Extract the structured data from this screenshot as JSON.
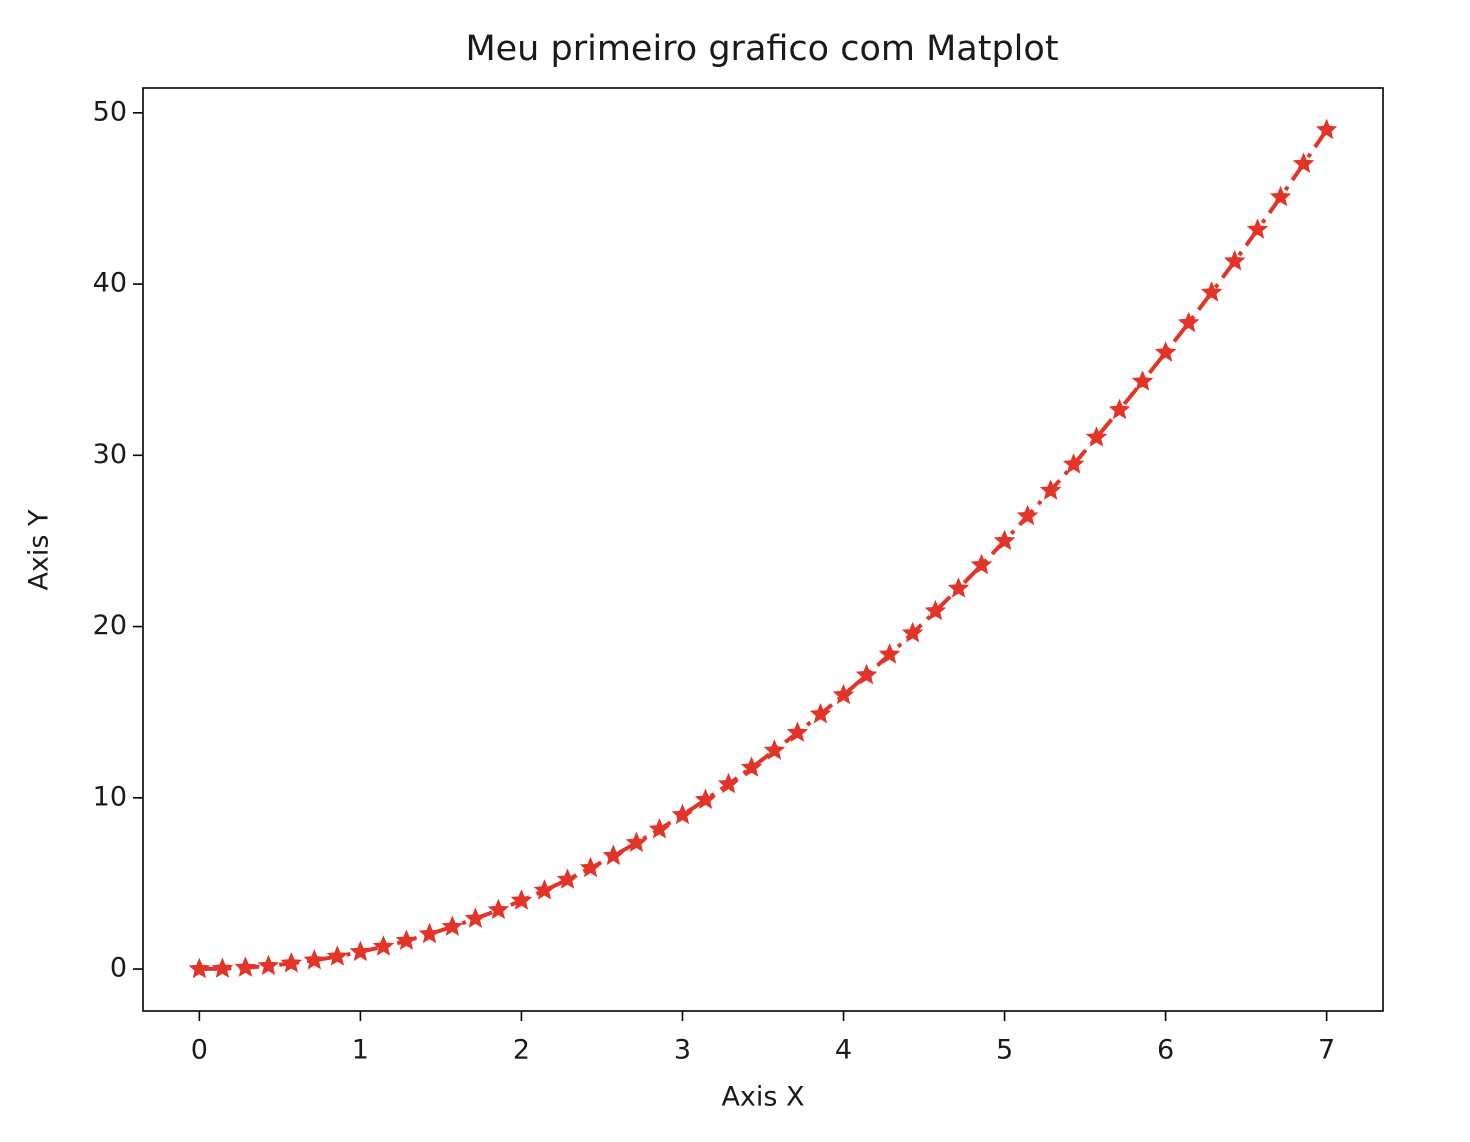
{
  "chart_data": {
    "type": "line",
    "title": "Meu primeiro grafico com Matplot",
    "x_label": "Axis X",
    "y_label": "Axis Y",
    "x": [
      0,
      0.143,
      0.286,
      0.429,
      0.571,
      0.714,
      0.857,
      1,
      1.143,
      1.286,
      1.429,
      1.571,
      1.714,
      1.857,
      2,
      2.143,
      2.286,
      2.429,
      2.571,
      2.714,
      2.857,
      3,
      3.143,
      3.286,
      3.429,
      3.571,
      3.714,
      3.857,
      4,
      4.143,
      4.286,
      4.429,
      4.571,
      4.714,
      4.857,
      5,
      5.143,
      5.286,
      5.429,
      5.571,
      5.714,
      5.857,
      6,
      6.143,
      6.286,
      6.429,
      6.571,
      6.714,
      6.857,
      7
    ],
    "values": [
      0,
      0.02,
      0.08,
      0.18,
      0.33,
      0.51,
      0.73,
      1,
      1.31,
      1.65,
      2.04,
      2.47,
      2.94,
      3.45,
      4,
      4.59,
      5.22,
      5.9,
      6.61,
      7.37,
      8.16,
      9,
      9.88,
      10.8,
      11.76,
      12.76,
      13.8,
      14.88,
      16,
      17.16,
      18.37,
      19.61,
      20.9,
      22.22,
      23.59,
      25,
      26.45,
      27.94,
      29.47,
      31.04,
      32.65,
      34.31,
      36,
      37.73,
      39.51,
      41.33,
      43.18,
      45.08,
      47.02,
      49
    ],
    "color": "#e23428",
    "marker": "star",
    "line_style": "dashdot",
    "xlim": [
      -0.35,
      7.35
    ],
    "xticks": [
      0,
      1,
      2,
      3,
      4,
      5,
      6,
      7
    ],
    "ylim": [
      -2.45,
      51.45
    ],
    "yticks": [
      0,
      10,
      20,
      30,
      40,
      50
    ],
    "grid": false
  }
}
